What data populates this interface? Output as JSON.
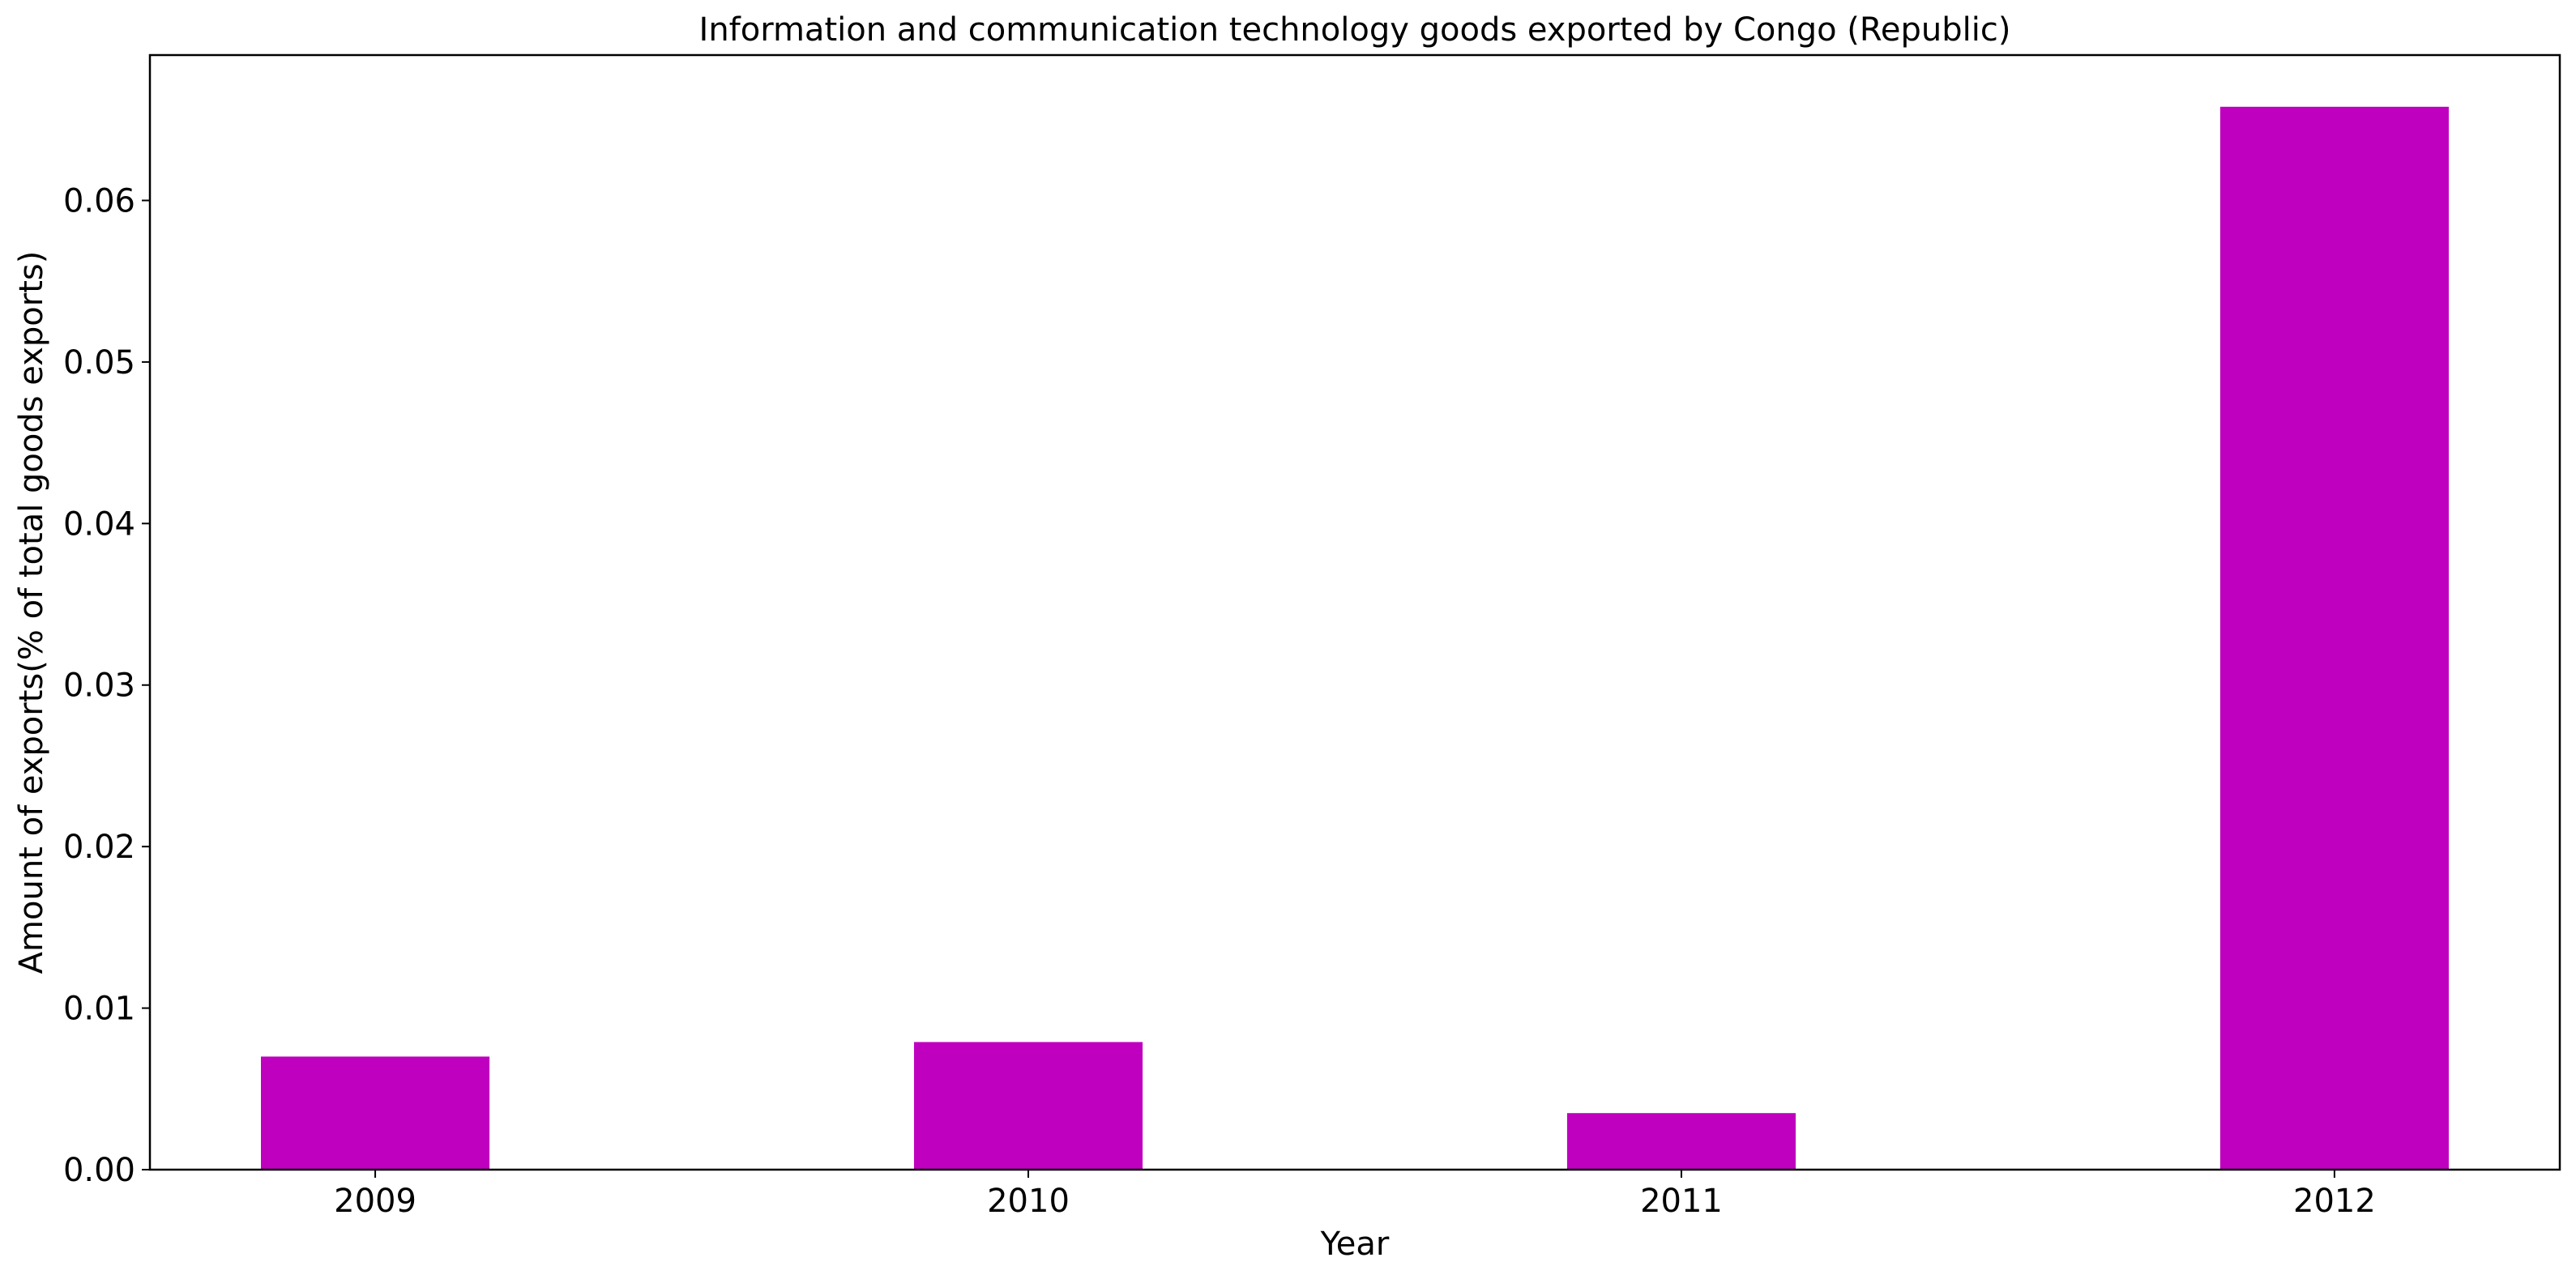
{
  "chart_data": {
    "type": "bar",
    "title": "Information and communication technology goods exported by Congo (Republic)",
    "xlabel": "Year",
    "ylabel": "Amount of exports(% of total goods exports)",
    "categories": [
      "2009",
      "2010",
      "2011",
      "2012"
    ],
    "values": [
      0.007,
      0.0079,
      0.0035,
      0.0658
    ],
    "ylim": [
      0,
      0.069
    ],
    "yticks": [
      0.0,
      0.01,
      0.02,
      0.03,
      0.04,
      0.05,
      0.06
    ],
    "ytick_labels": [
      "0.00",
      "0.01",
      "0.02",
      "0.03",
      "0.04",
      "0.05",
      "0.06"
    ],
    "bar_color": "#bf00bf",
    "grid": false,
    "legend": "none"
  }
}
